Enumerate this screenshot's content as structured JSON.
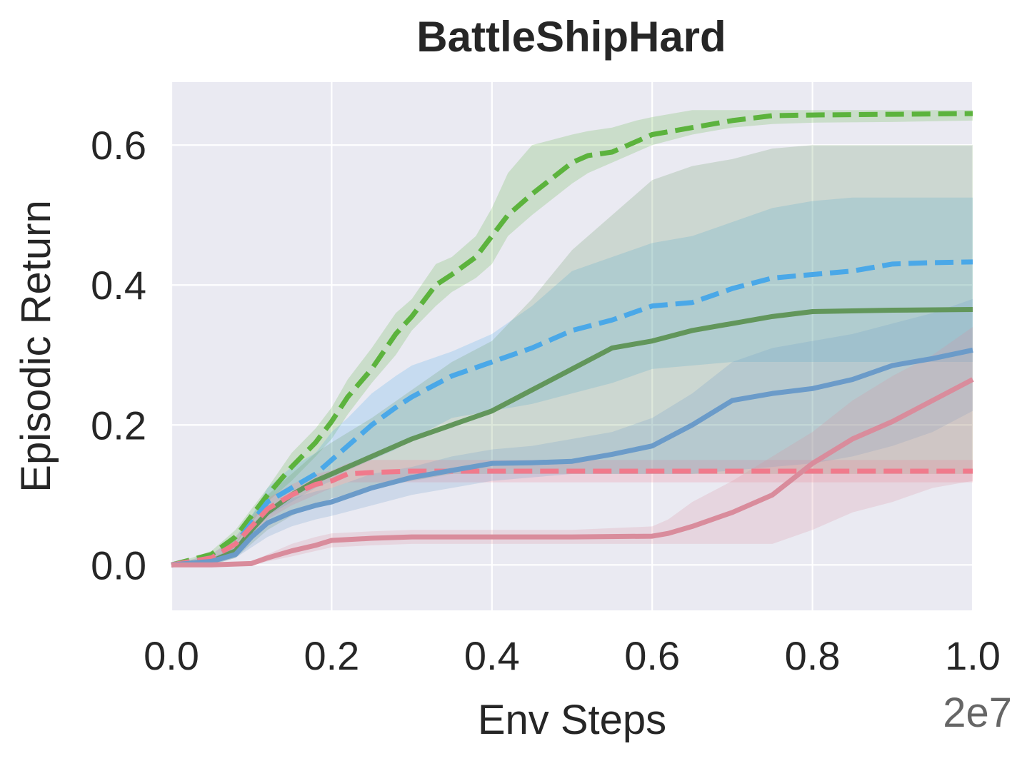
{
  "chart_data": {
    "type": "line",
    "title": "BattleShipHard",
    "xlabel": "Env Steps",
    "ylabel": "Episodic Return",
    "x_offset_label": "2e7",
    "xlim": [
      0.0,
      1.0
    ],
    "ylim": [
      -0.065,
      0.69
    ],
    "xticks": [
      "0.0",
      "0.2",
      "0.4",
      "0.6",
      "0.8",
      "1.0"
    ],
    "yticks": [
      "0.0",
      "0.2",
      "0.4",
      "0.6"
    ],
    "xtick_values": [
      0.0,
      0.2,
      0.4,
      0.6,
      0.8,
      1.0
    ],
    "ytick_values": [
      0.0,
      0.2,
      0.4,
      0.6
    ],
    "background": "#eaeaf2",
    "grid": true,
    "series": [
      {
        "name": "green-dashed",
        "color": "#5cb33d",
        "style": "dashed",
        "x": [
          0.0,
          0.05,
          0.08,
          0.1,
          0.12,
          0.15,
          0.18,
          0.2,
          0.22,
          0.25,
          0.28,
          0.3,
          0.33,
          0.35,
          0.38,
          0.4,
          0.42,
          0.45,
          0.5,
          0.52,
          0.55,
          0.58,
          0.6,
          0.65,
          0.7,
          0.75,
          0.8,
          0.9,
          1.0
        ],
        "y": [
          0.0,
          0.015,
          0.04,
          0.07,
          0.1,
          0.14,
          0.175,
          0.205,
          0.24,
          0.28,
          0.33,
          0.355,
          0.4,
          0.415,
          0.44,
          0.47,
          0.5,
          0.53,
          0.575,
          0.585,
          0.59,
          0.605,
          0.615,
          0.625,
          0.635,
          0.642,
          0.643,
          0.644,
          0.645
        ],
        "lower": [
          0.0,
          0.01,
          0.03,
          0.06,
          0.09,
          0.12,
          0.155,
          0.18,
          0.215,
          0.26,
          0.3,
          0.335,
          0.37,
          0.39,
          0.41,
          0.43,
          0.47,
          0.5,
          0.545,
          0.56,
          0.575,
          0.59,
          0.6,
          0.615,
          0.625,
          0.63,
          0.632,
          0.633,
          0.635
        ],
        "upper": [
          0.0,
          0.02,
          0.05,
          0.08,
          0.11,
          0.16,
          0.195,
          0.225,
          0.265,
          0.31,
          0.36,
          0.38,
          0.43,
          0.44,
          0.47,
          0.51,
          0.56,
          0.6,
          0.615,
          0.62,
          0.625,
          0.635,
          0.64,
          0.65,
          0.65,
          0.65,
          0.65,
          0.65,
          0.65
        ]
      },
      {
        "name": "blue-dashed",
        "color": "#4aa8e8",
        "style": "dashed",
        "x": [
          0.0,
          0.05,
          0.08,
          0.1,
          0.12,
          0.15,
          0.18,
          0.2,
          0.22,
          0.25,
          0.28,
          0.3,
          0.35,
          0.4,
          0.45,
          0.5,
          0.55,
          0.6,
          0.65,
          0.7,
          0.75,
          0.8,
          0.85,
          0.9,
          0.95,
          1.0
        ],
        "y": [
          0.0,
          0.01,
          0.03,
          0.06,
          0.09,
          0.11,
          0.13,
          0.15,
          0.17,
          0.2,
          0.225,
          0.24,
          0.27,
          0.29,
          0.31,
          0.335,
          0.35,
          0.37,
          0.375,
          0.395,
          0.41,
          0.415,
          0.42,
          0.43,
          0.432,
          0.433
        ],
        "lower": [
          0.0,
          0.005,
          0.02,
          0.05,
          0.07,
          0.09,
          0.11,
          0.12,
          0.135,
          0.15,
          0.165,
          0.18,
          0.21,
          0.22,
          0.23,
          0.245,
          0.26,
          0.28,
          0.285,
          0.29,
          0.29,
          0.29,
          0.29,
          0.29,
          0.29,
          0.29
        ],
        "upper": [
          0.0,
          0.015,
          0.04,
          0.07,
          0.11,
          0.14,
          0.16,
          0.19,
          0.21,
          0.245,
          0.27,
          0.285,
          0.305,
          0.33,
          0.37,
          0.42,
          0.44,
          0.46,
          0.47,
          0.49,
          0.51,
          0.52,
          0.525,
          0.525,
          0.525,
          0.525
        ]
      },
      {
        "name": "green-solid",
        "color": "#62965b",
        "style": "solid",
        "x": [
          0.0,
          0.05,
          0.08,
          0.1,
          0.12,
          0.15,
          0.18,
          0.2,
          0.25,
          0.3,
          0.35,
          0.4,
          0.45,
          0.5,
          0.55,
          0.6,
          0.65,
          0.7,
          0.75,
          0.8,
          0.9,
          1.0
        ],
        "y": [
          0.0,
          0.005,
          0.02,
          0.05,
          0.075,
          0.1,
          0.12,
          0.13,
          0.155,
          0.18,
          0.2,
          0.22,
          0.25,
          0.28,
          0.31,
          0.32,
          0.335,
          0.345,
          0.355,
          0.362,
          0.364,
          0.365
        ],
        "lower": [
          0.0,
          0.0,
          0.01,
          0.03,
          0.05,
          0.07,
          0.085,
          0.095,
          0.11,
          0.12,
          0.13,
          0.13,
          0.13,
          0.13,
          0.13,
          0.13,
          0.13,
          0.13,
          0.13,
          0.13,
          0.13,
          0.13
        ],
        "upper": [
          0.0,
          0.01,
          0.03,
          0.07,
          0.1,
          0.13,
          0.16,
          0.175,
          0.21,
          0.25,
          0.29,
          0.32,
          0.38,
          0.45,
          0.5,
          0.55,
          0.57,
          0.58,
          0.595,
          0.6,
          0.6,
          0.6
        ]
      },
      {
        "name": "red-dashed",
        "color": "#f07a8c",
        "style": "dashed",
        "x": [
          0.0,
          0.05,
          0.08,
          0.1,
          0.12,
          0.15,
          0.18,
          0.2,
          0.22,
          0.25,
          0.3,
          0.4,
          0.5,
          0.6,
          0.7,
          0.8,
          0.9,
          1.0
        ],
        "y": [
          0.0,
          0.01,
          0.03,
          0.055,
          0.08,
          0.1,
          0.115,
          0.12,
          0.13,
          0.132,
          0.134,
          0.134,
          0.134,
          0.134,
          0.134,
          0.134,
          0.134,
          0.134
        ],
        "lower": [
          0.0,
          0.005,
          0.02,
          0.045,
          0.065,
          0.085,
          0.1,
          0.11,
          0.118,
          0.118,
          0.118,
          0.118,
          0.118,
          0.118,
          0.118,
          0.118,
          0.118,
          0.118
        ],
        "upper": [
          0.0,
          0.015,
          0.04,
          0.065,
          0.095,
          0.115,
          0.13,
          0.135,
          0.145,
          0.15,
          0.15,
          0.15,
          0.15,
          0.15,
          0.15,
          0.15,
          0.15,
          0.15
        ]
      },
      {
        "name": "blue-solid",
        "color": "#6b9bc9",
        "style": "solid",
        "x": [
          0.0,
          0.05,
          0.08,
          0.1,
          0.12,
          0.15,
          0.18,
          0.2,
          0.25,
          0.3,
          0.35,
          0.4,
          0.45,
          0.5,
          0.55,
          0.6,
          0.65,
          0.7,
          0.75,
          0.8,
          0.85,
          0.9,
          0.95,
          1.0
        ],
        "y": [
          0.0,
          0.005,
          0.015,
          0.04,
          0.06,
          0.075,
          0.085,
          0.09,
          0.11,
          0.125,
          0.135,
          0.145,
          0.146,
          0.148,
          0.158,
          0.17,
          0.2,
          0.235,
          0.245,
          0.252,
          0.265,
          0.285,
          0.295,
          0.307
        ],
        "lower": [
          0.0,
          0.0,
          0.01,
          0.025,
          0.04,
          0.055,
          0.065,
          0.07,
          0.085,
          0.1,
          0.11,
          0.12,
          0.125,
          0.13,
          0.13,
          0.13,
          0.13,
          0.135,
          0.14,
          0.145,
          0.155,
          0.17,
          0.19,
          0.22
        ],
        "upper": [
          0.0,
          0.01,
          0.025,
          0.055,
          0.08,
          0.095,
          0.105,
          0.11,
          0.13,
          0.14,
          0.155,
          0.165,
          0.17,
          0.18,
          0.19,
          0.21,
          0.245,
          0.29,
          0.31,
          0.32,
          0.33,
          0.345,
          0.36,
          0.38
        ]
      },
      {
        "name": "red-solid",
        "color": "#d98c9c",
        "style": "solid",
        "x": [
          0.0,
          0.05,
          0.1,
          0.12,
          0.15,
          0.18,
          0.2,
          0.25,
          0.3,
          0.4,
          0.5,
          0.6,
          0.62,
          0.65,
          0.7,
          0.75,
          0.8,
          0.85,
          0.9,
          0.95,
          1.0
        ],
        "y": [
          0.0,
          0.0,
          0.002,
          0.01,
          0.02,
          0.028,
          0.035,
          0.038,
          0.04,
          0.04,
          0.04,
          0.041,
          0.045,
          0.055,
          0.075,
          0.1,
          0.145,
          0.18,
          0.205,
          0.235,
          0.265
        ],
        "lower": [
          0.0,
          0.0,
          0.0,
          0.005,
          0.012,
          0.02,
          0.025,
          0.028,
          0.03,
          0.03,
          0.03,
          0.03,
          0.03,
          0.03,
          0.03,
          0.03,
          0.05,
          0.075,
          0.09,
          0.11,
          0.12
        ],
        "upper": [
          0.0,
          0.0,
          0.005,
          0.015,
          0.03,
          0.04,
          0.045,
          0.048,
          0.05,
          0.05,
          0.05,
          0.055,
          0.065,
          0.09,
          0.12,
          0.155,
          0.19,
          0.235,
          0.27,
          0.3,
          0.34
        ]
      }
    ]
  }
}
